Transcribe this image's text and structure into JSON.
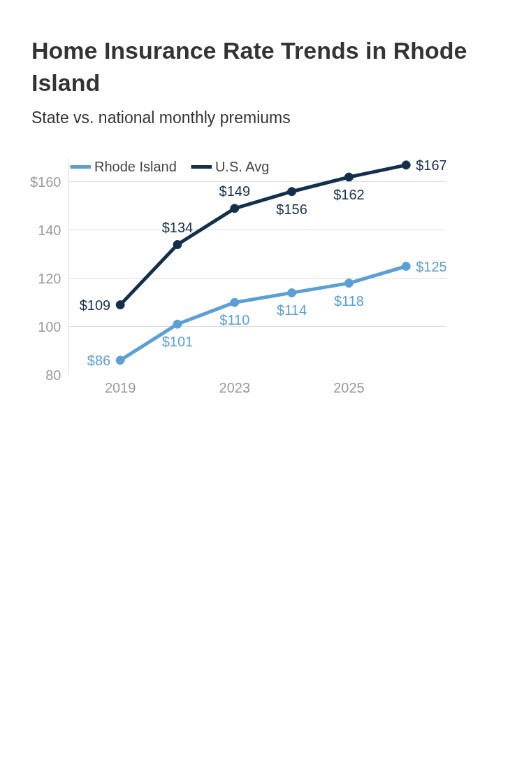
{
  "chart_data": {
    "type": "line",
    "title": "Home Insurance Rate Trends in Rhode Island",
    "subtitle": "State vs. national monthly premiums",
    "categories": [
      "2019",
      null,
      "2023",
      null,
      "2025",
      null
    ],
    "series": [
      {
        "name": "Rhode Island",
        "color": "#5b9fd6",
        "values": [
          86,
          101,
          110,
          114,
          118,
          125
        ],
        "value_labels": [
          "$86",
          "$101",
          "$110",
          "$114",
          "$118",
          "$125"
        ]
      },
      {
        "name": "U.S. Avg",
        "color": "#142f4c",
        "values": [
          109,
          134,
          149,
          156,
          162,
          167
        ],
        "value_labels": [
          "$109",
          "$134",
          "$149",
          "$156",
          "$162",
          "$167"
        ]
      }
    ],
    "ylim": [
      80,
      170
    ],
    "yticks": [
      80,
      100,
      120,
      140,
      {
        "value": 160,
        "label": "$160"
      }
    ],
    "grid": "y",
    "legend": "top left",
    "marker": "circle",
    "line_style": "solid"
  }
}
